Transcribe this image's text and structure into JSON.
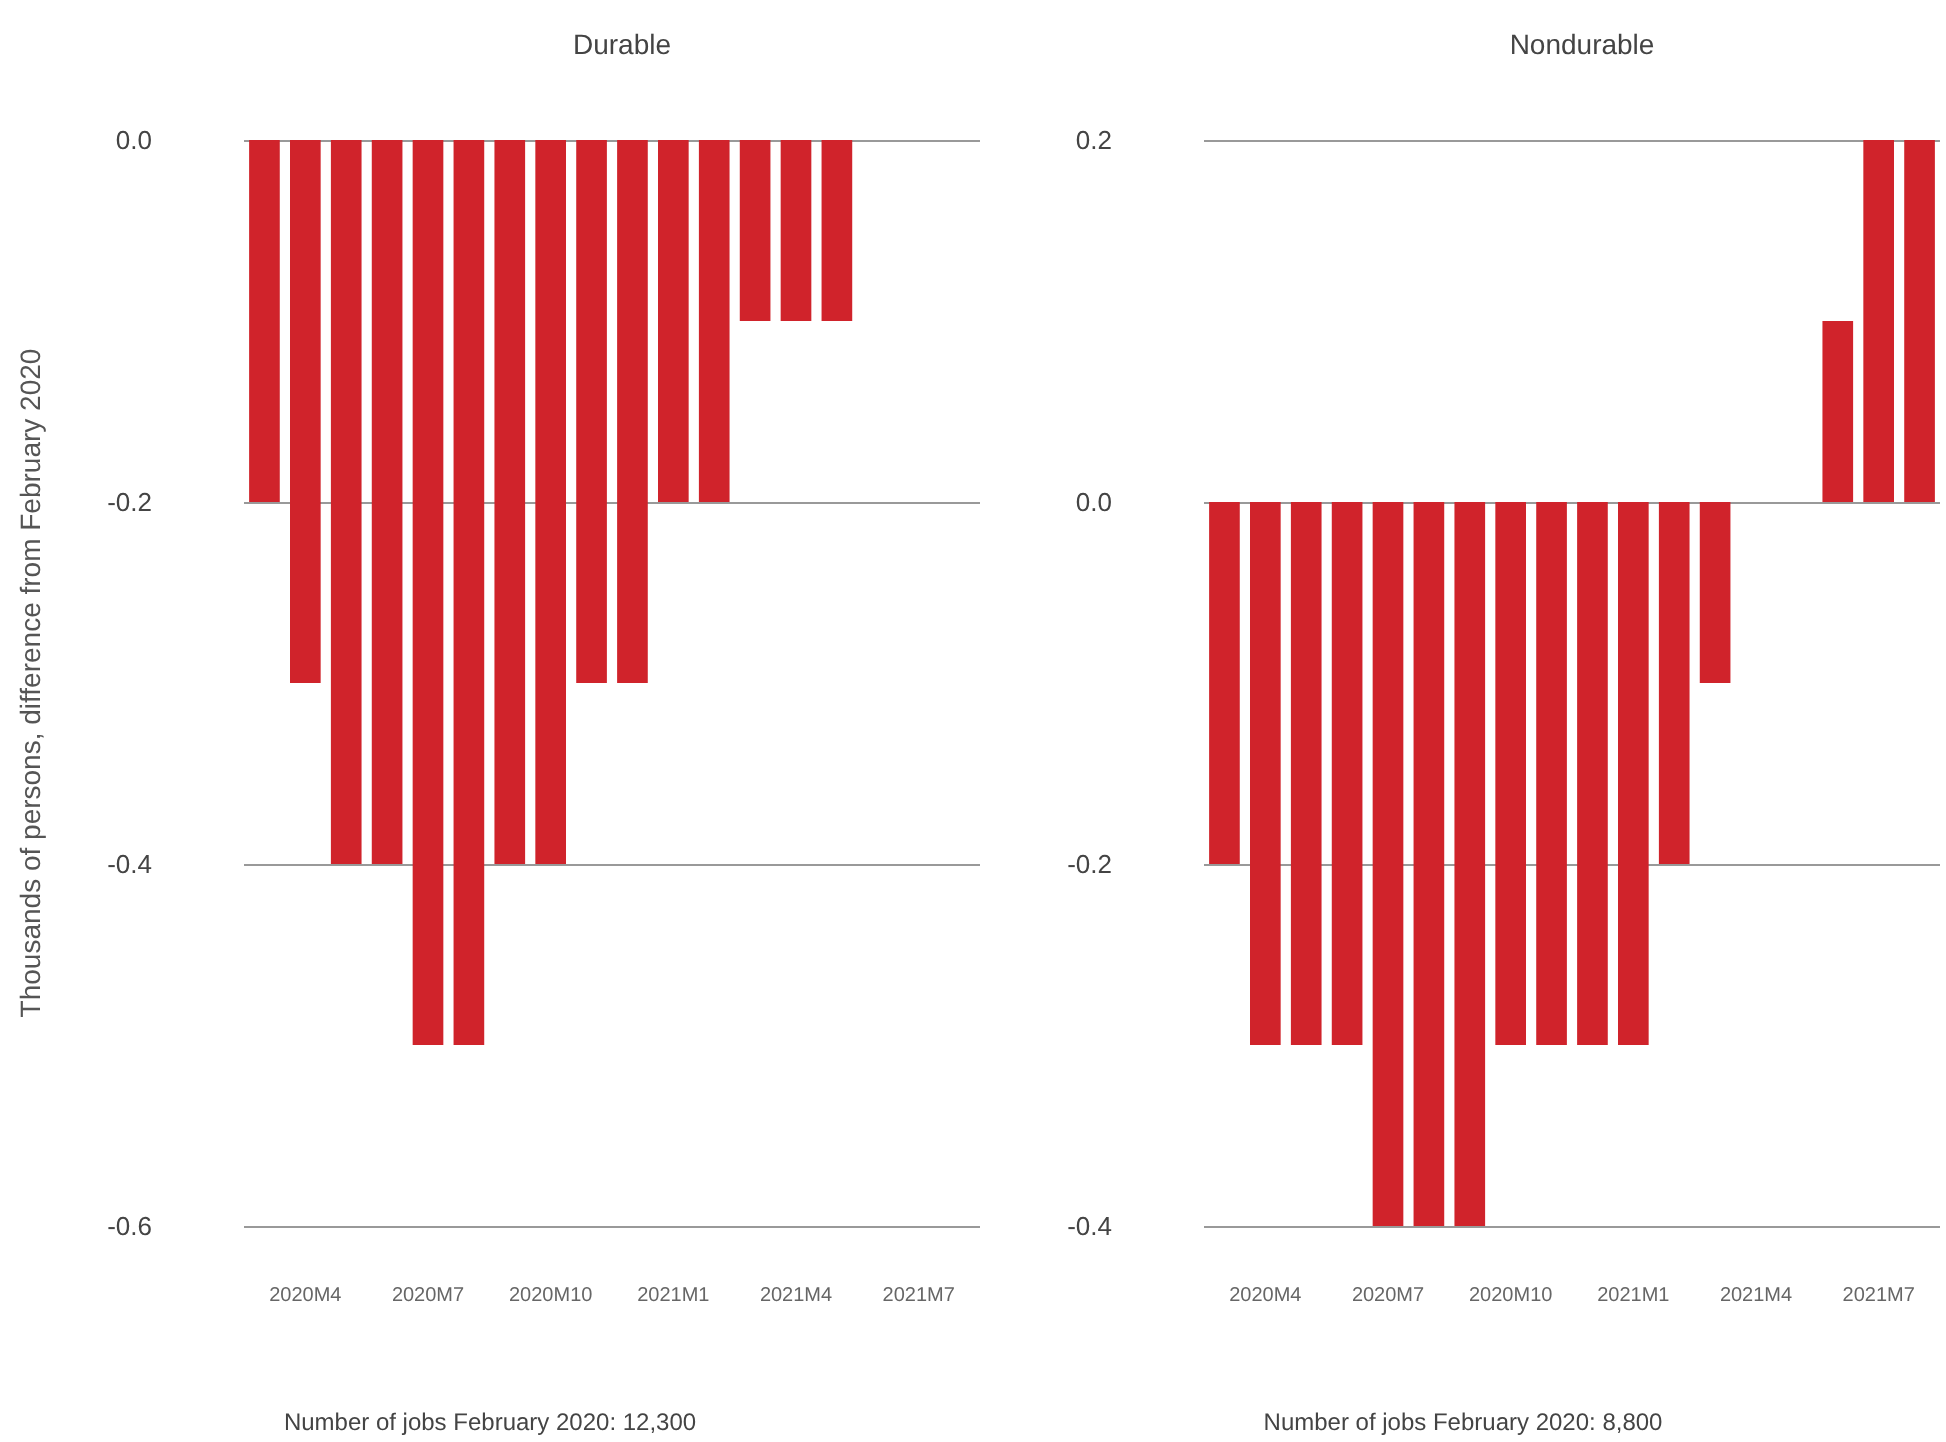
{
  "chart_data": [
    {
      "type": "bar",
      "title": "Durable",
      "ylabel": "Thousands of persons, difference from February 2020",
      "categories": [
        null,
        "2020M4",
        null,
        null,
        "2020M7",
        null,
        null,
        "2020M10",
        null,
        null,
        "2021M1",
        null,
        null,
        "2021M4",
        null,
        null,
        "2021M7",
        null
      ],
      "series": [
        {
          "color": "#d0232b",
          "values": [
            -0.2,
            -0.3,
            -0.4,
            -0.4,
            -0.5,
            -0.5,
            -0.4,
            -0.4,
            -0.3,
            -0.3,
            -0.2,
            -0.2,
            -0.1,
            -0.1,
            -0.1,
            null,
            null,
            null
          ]
        }
      ],
      "ylim": [
        -0.6,
        0
      ],
      "yticks": [
        -0.6,
        -0.4,
        -0.2,
        {
          "value": 0,
          "label": "0.0"
        }
      ],
      "grid": "y",
      "annotations": [
        "Number of jobs February 2020: 12,300"
      ]
    },
    {
      "type": "bar",
      "title": "Nondurable",
      "categories": [
        null,
        "2020M4",
        null,
        null,
        "2020M7",
        null,
        null,
        "2020M10",
        null,
        null,
        "2021M1",
        null,
        null,
        "2021M4",
        null,
        null,
        "2021M7",
        null
      ],
      "series": [
        {
          "color": "#d0232b",
          "values": [
            -0.2,
            -0.3,
            -0.3,
            -0.3,
            -0.4,
            -0.4,
            -0.4,
            -0.3,
            -0.3,
            -0.3,
            -0.3,
            -0.2,
            -0.1,
            0,
            0,
            0.1,
            0.2,
            0.2
          ]
        }
      ],
      "ylim": [
        -0.4,
        0.2
      ],
      "yticks": [
        -0.4,
        -0.2,
        {
          "value": 0,
          "label": "0.0"
        },
        0.2
      ],
      "grid": "y",
      "annotations": [
        "Number of jobs February 2020: 8,800"
      ]
    }
  ]
}
